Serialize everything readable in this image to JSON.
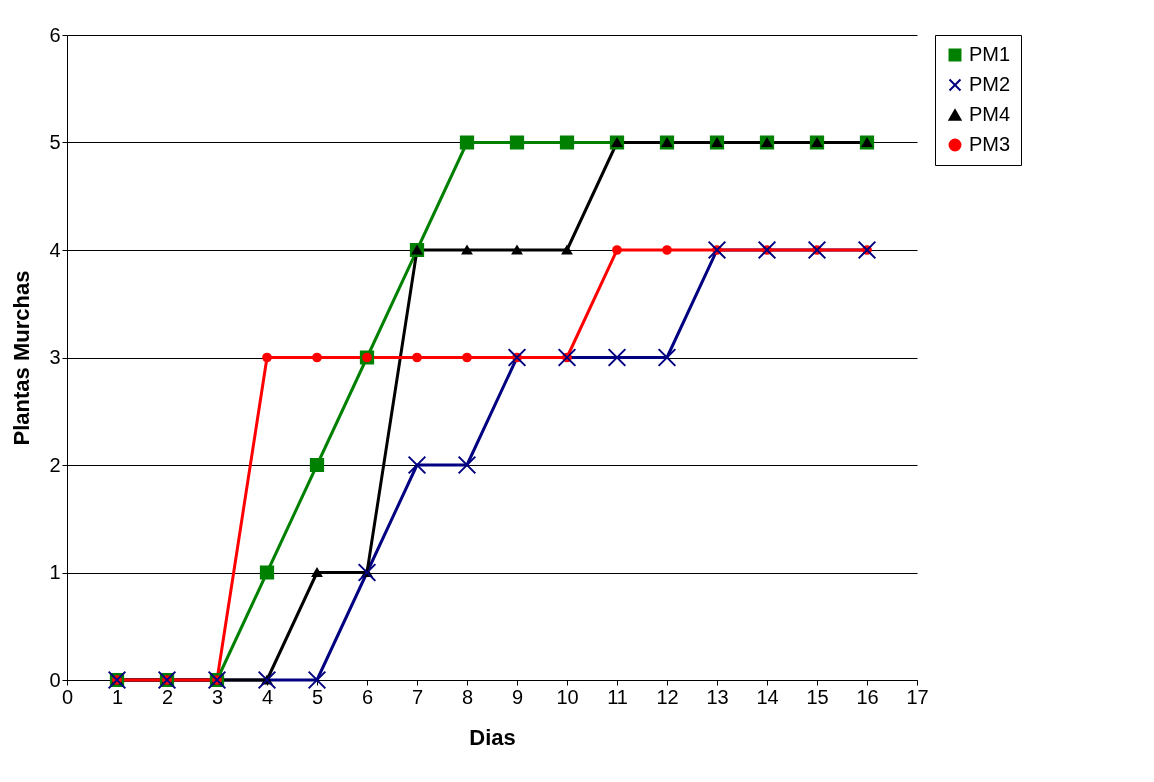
{
  "chart_data": {
    "type": "line",
    "xlabel": "Dias",
    "ylabel": "Plantas Murchas",
    "x": [
      1,
      2,
      3,
      4,
      5,
      6,
      7,
      8,
      9,
      10,
      11,
      12,
      13,
      14,
      15,
      16
    ],
    "series": [
      {
        "name": "PM1",
        "color": "#008000",
        "marker": "square",
        "values": [
          0,
          0,
          0,
          1,
          2,
          3,
          4,
          5,
          5,
          5,
          5,
          5,
          5,
          5,
          5,
          5
        ]
      },
      {
        "name": "PM2",
        "color": "#000080",
        "marker": "cross",
        "values": [
          0,
          0,
          0,
          0,
          0,
          1,
          2,
          2,
          3,
          3,
          3,
          3,
          4,
          4,
          4,
          4
        ]
      },
      {
        "name": "PM4",
        "color": "#000000",
        "marker": "triangle",
        "values": [
          0,
          0,
          0,
          0,
          1,
          1,
          4,
          4,
          4,
          4,
          5,
          5,
          5,
          5,
          5,
          5
        ]
      },
      {
        "name": "PM3",
        "color": "#ff0000",
        "marker": "circle",
        "values": [
          0,
          0,
          0,
          3,
          3,
          3,
          3,
          3,
          3,
          3,
          4,
          4,
          4,
          4,
          4,
          4
        ]
      }
    ],
    "xlim": [
      0,
      17
    ],
    "xticks": [
      0,
      1,
      2,
      3,
      4,
      5,
      6,
      7,
      8,
      9,
      10,
      11,
      12,
      13,
      14,
      15,
      16,
      17
    ],
    "ylim": [
      0,
      6
    ],
    "yticks": [
      0,
      1,
      2,
      3,
      4,
      5,
      6
    ],
    "grid": "y",
    "legend": "right",
    "line_style": "solid"
  }
}
